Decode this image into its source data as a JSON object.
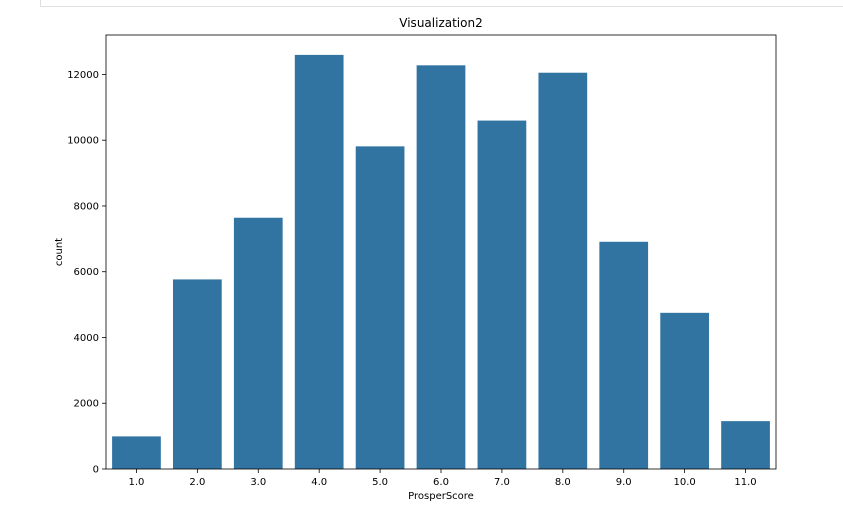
{
  "chart_data": {
    "type": "bar",
    "title": "Visualization2",
    "xlabel": "ProsperScore",
    "ylabel": "count",
    "categories": [
      "1.0",
      "2.0",
      "3.0",
      "4.0",
      "5.0",
      "6.0",
      "7.0",
      "8.0",
      "9.0",
      "10.0",
      "11.0"
    ],
    "values": [
      992,
      5766,
      7642,
      12595,
      9813,
      12278,
      10597,
      12053,
      6911,
      4750,
      1456
    ],
    "ylim": [
      0,
      13200
    ],
    "yticks": [
      0,
      2000,
      4000,
      6000,
      8000,
      10000,
      12000
    ],
    "grid": false,
    "bar_color": "#3274a1"
  }
}
